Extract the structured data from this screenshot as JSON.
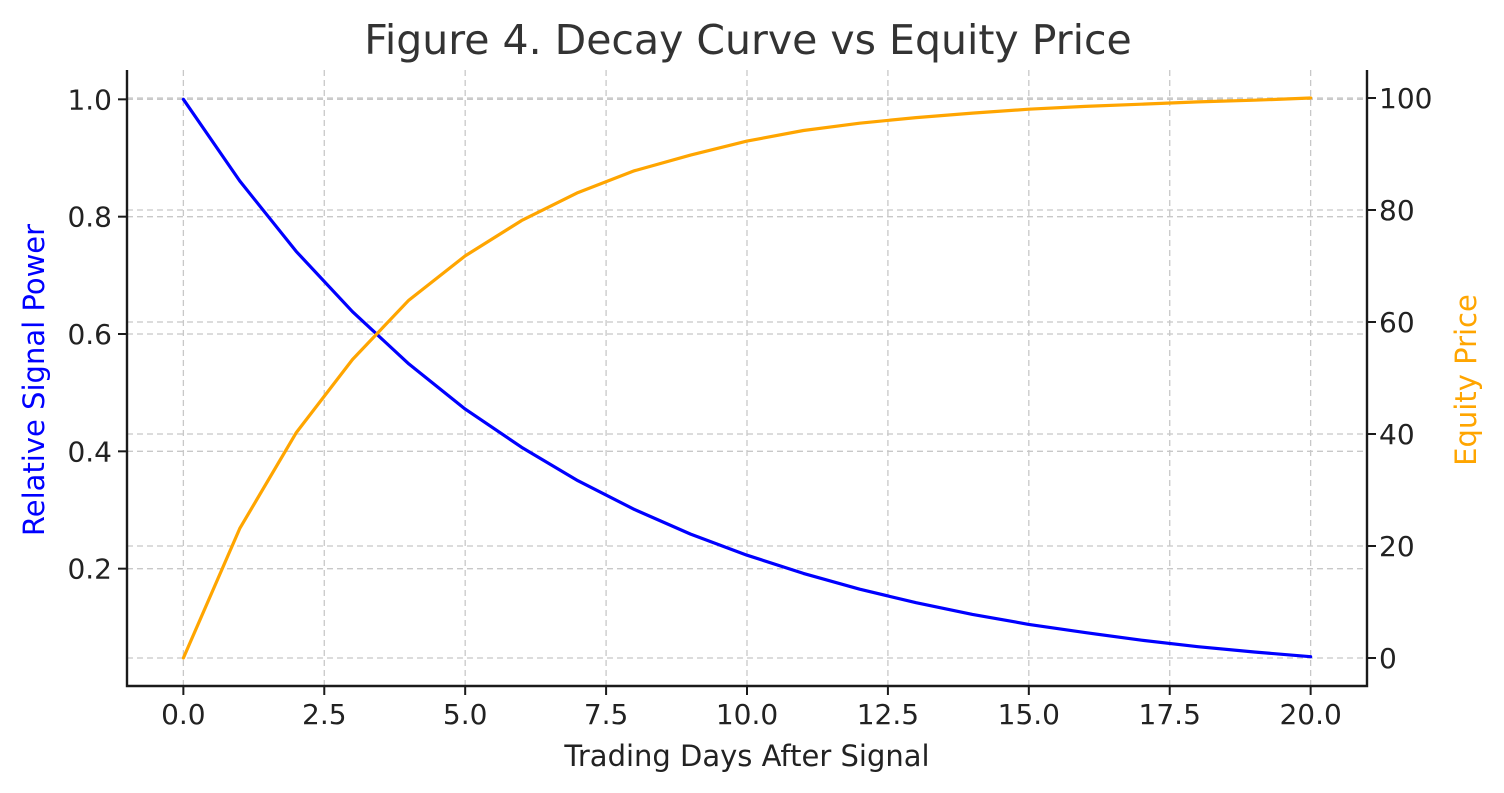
{
  "chart_data": {
    "type": "line",
    "title": "Figure 4. Decay Curve vs Equity Price",
    "xlabel": "Trading Days After Signal",
    "ylabel_left": "Relative Signal Power",
    "ylabel_right": "Equity Price",
    "xlim": [
      -1,
      21
    ],
    "ylim_left": [
      0.0,
      1.05
    ],
    "ylim_right": [
      -5,
      105
    ],
    "x_ticks": [
      "0.0",
      "2.5",
      "5.0",
      "7.5",
      "10.0",
      "12.5",
      "15.0",
      "17.5",
      "20.0"
    ],
    "x_tick_values": [
      0,
      2.5,
      5,
      7.5,
      10,
      12.5,
      15,
      17.5,
      20
    ],
    "y_left_ticks": [
      "0.2",
      "0.4",
      "0.6",
      "0.8",
      "1.0"
    ],
    "y_left_tick_values": [
      0.2,
      0.4,
      0.6,
      0.8,
      1.0
    ],
    "y_right_ticks": [
      "0",
      "20",
      "40",
      "60",
      "80",
      "100"
    ],
    "y_right_tick_values": [
      0,
      20,
      40,
      60,
      80,
      100
    ],
    "grid": true,
    "x": [
      0,
      1,
      2,
      3,
      4,
      5,
      6,
      7,
      8,
      9,
      10,
      11,
      12,
      13,
      14,
      15,
      16,
      17,
      18,
      19,
      20
    ],
    "series": [
      {
        "axis": "left",
        "color": "#0000ff",
        "values": [
          1.0,
          0.861,
          0.741,
          0.638,
          0.549,
          0.472,
          0.407,
          0.35,
          0.301,
          0.259,
          0.223,
          0.192,
          0.165,
          0.142,
          0.122,
          0.105,
          0.091,
          0.078,
          0.067,
          0.058,
          0.05
        ]
      },
      {
        "axis": "right",
        "color": "#ffa500",
        "values": [
          0.0,
          23.1,
          40.2,
          53.3,
          63.9,
          71.8,
          78.1,
          83.1,
          87.0,
          89.8,
          92.3,
          94.2,
          95.5,
          96.5,
          97.3,
          98.0,
          98.5,
          98.9,
          99.3,
          99.6,
          100.0
        ]
      }
    ]
  }
}
